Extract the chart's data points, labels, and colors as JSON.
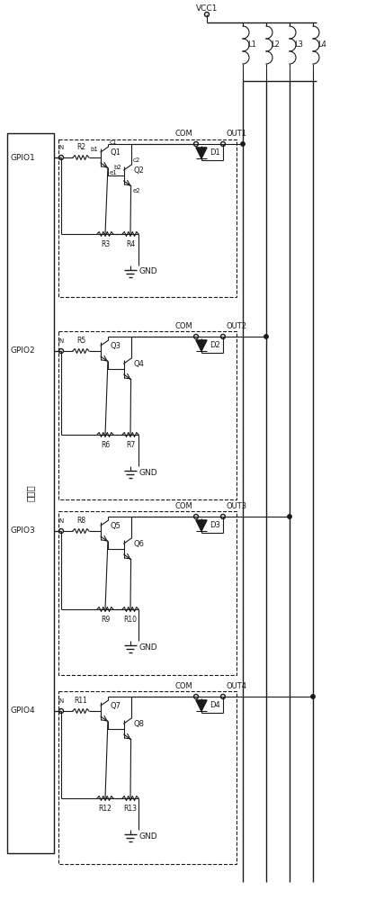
{
  "bg_color": "#ffffff",
  "line_color": "#1a1a1a",
  "lw": 1.0,
  "tw": 0.8,
  "dw": 0.8,
  "fs": 6.5,
  "vcc_label": "VCC1",
  "gnd_label": "GND",
  "com_label": "COM",
  "in_label": "IN",
  "main_chip_label": "主芯片",
  "gpio_labels": [
    "GPIO1",
    "GPIO2",
    "GPIO3",
    "GPIO4"
  ],
  "inductor_labels": [
    "L1",
    "L2",
    "L3",
    "L4"
  ],
  "channels": [
    {
      "gpio": "GPIO1",
      "q1": "Q1",
      "q2": "Q2",
      "rin": "R2",
      "re1": "R3",
      "re2": "R4",
      "d": "D1",
      "out": "OUT1",
      "c1": "c1",
      "e1": "e1",
      "b1": "b1",
      "c2": "c2",
      "e2": "e2",
      "b2": "b2",
      "show_labels": true
    },
    {
      "gpio": "GPIO2",
      "q1": "Q3",
      "q2": "Q4",
      "rin": "R5",
      "re1": "R6",
      "re2": "R7",
      "d": "D2",
      "out": "OUT2",
      "c1": "",
      "e1": "",
      "b1": "",
      "c2": "",
      "e2": "",
      "b2": "",
      "show_labels": false
    },
    {
      "gpio": "GPIO3",
      "q1": "Q5",
      "q2": "Q6",
      "rin": "R8",
      "re1": "R9",
      "re2": "R10",
      "d": "D3",
      "out": "OUT3",
      "c1": "",
      "e1": "",
      "b1": "",
      "c2": "",
      "e2": "",
      "b2": "",
      "show_labels": false
    },
    {
      "gpio": "GPIO4",
      "q1": "Q7",
      "q2": "Q8",
      "rin": "R11",
      "re1": "R12",
      "re2": "R13",
      "d": "D4",
      "out": "OUT4",
      "c1": "",
      "e1": "",
      "b1": "",
      "c2": "",
      "e2": "",
      "b2": "",
      "show_labels": false
    }
  ]
}
